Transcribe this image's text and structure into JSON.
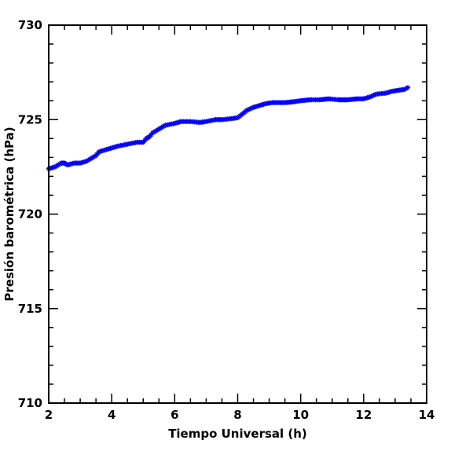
{
  "chart_data": {
    "type": "scatter",
    "title": "",
    "xlabel": "Tiempo Universal (h)",
    "ylabel": "Presión barométrica (hPa)",
    "xlim": [
      2,
      14
    ],
    "ylim": [
      710,
      730
    ],
    "x_ticks": [
      2,
      4,
      6,
      8,
      10,
      12,
      14
    ],
    "y_ticks": [
      710,
      715,
      720,
      725,
      730
    ],
    "x_tick_labels": [
      "2",
      "4",
      "6",
      "8",
      "10",
      "12",
      "14"
    ],
    "y_tick_labels": [
      "710",
      "715",
      "720",
      "725",
      "730"
    ],
    "marker": "asterisk",
    "grid": false,
    "legend": "none",
    "series_color": "#0000ff",
    "axis_color": "#000000",
    "series": [
      {
        "x": [
          2.0,
          2.2,
          2.4,
          2.5,
          2.6,
          2.8,
          3.0,
          3.2,
          3.3,
          3.5,
          3.6,
          3.8,
          4.0,
          4.2,
          4.5,
          4.8,
          5.0,
          5.1,
          5.2,
          5.3,
          5.5,
          5.7,
          6.0,
          6.2,
          6.5,
          6.8,
          7.0,
          7.3,
          7.5,
          7.8,
          8.0,
          8.3,
          8.5,
          8.7,
          8.9,
          9.1,
          9.5,
          9.8,
          10.0,
          10.3,
          10.6,
          10.9,
          11.2,
          11.5,
          11.8,
          12.0,
          12.2,
          12.4,
          12.7,
          12.9,
          13.1,
          13.3,
          13.4
        ],
        "y": [
          722.4,
          722.5,
          722.7,
          722.7,
          722.6,
          722.7,
          722.7,
          722.8,
          722.9,
          723.1,
          723.3,
          723.4,
          723.5,
          723.6,
          723.7,
          723.8,
          723.8,
          724.0,
          724.1,
          724.3,
          724.5,
          724.7,
          724.8,
          724.9,
          724.9,
          724.85,
          724.9,
          725.0,
          725.0,
          725.05,
          725.1,
          725.5,
          725.65,
          725.75,
          725.85,
          725.9,
          725.9,
          725.95,
          726.0,
          726.05,
          726.05,
          726.1,
          726.05,
          726.05,
          726.1,
          726.1,
          726.2,
          726.35,
          726.4,
          726.5,
          726.55,
          726.6,
          726.7
        ]
      }
    ]
  }
}
